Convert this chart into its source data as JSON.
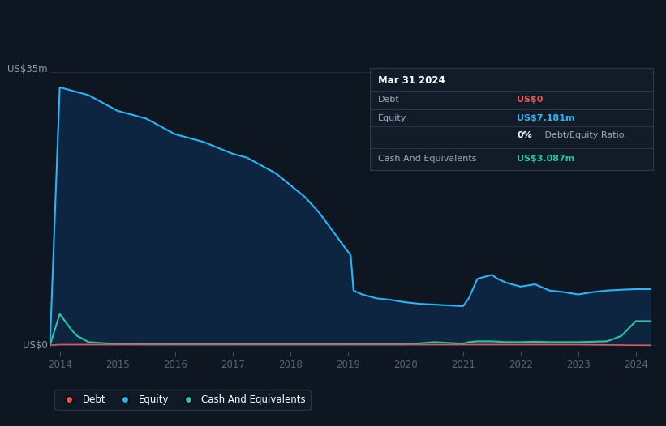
{
  "background_color": "#0e1621",
  "plot_bg_color": "#0e1621",
  "grid_color": "#1e2d3d",
  "x_ticks": [
    2014,
    2015,
    2016,
    2017,
    2018,
    2019,
    2020,
    2021,
    2022,
    2023,
    2024
  ],
  "equity_color": "#29b6f6",
  "equity_fill": "#0d2540",
  "debt_color": "#ef5350",
  "cash_color": "#26c6a6",
  "ylim_max": 35,
  "equity_data": {
    "x": [
      2013.83,
      2014.0,
      2014.25,
      2014.5,
      2015.0,
      2015.5,
      2016.0,
      2016.5,
      2017.0,
      2017.25,
      2017.5,
      2017.75,
      2018.0,
      2018.25,
      2018.5,
      2018.75,
      2019.0,
      2019.05,
      2019.1,
      2019.25,
      2019.5,
      2019.75,
      2020.0,
      2020.25,
      2020.5,
      2021.0,
      2021.1,
      2021.25,
      2021.5,
      2021.6,
      2021.75,
      2022.0,
      2022.25,
      2022.5,
      2022.75,
      2023.0,
      2023.25,
      2023.5,
      2023.75,
      2024.0,
      2024.25
    ],
    "y": [
      0,
      33,
      32.5,
      32,
      30,
      29,
      27,
      26,
      24.5,
      24,
      23,
      22,
      20.5,
      19,
      17,
      14.5,
      12,
      11.5,
      7,
      6.5,
      6,
      5.8,
      5.5,
      5.3,
      5.2,
      5.0,
      6.0,
      8.5,
      9.0,
      8.5,
      8.0,
      7.5,
      7.8,
      7.0,
      6.8,
      6.5,
      6.8,
      7.0,
      7.1,
      7.181,
      7.181
    ]
  },
  "debt_data": {
    "x": [
      2013.83,
      2014.0,
      2015.0,
      2016.0,
      2017.0,
      2018.0,
      2019.0,
      2020.0,
      2020.5,
      2021.0,
      2022.0,
      2023.0,
      2024.0,
      2024.25
    ],
    "y": [
      0,
      0.08,
      0.08,
      0.08,
      0.08,
      0.08,
      0.08,
      0.08,
      0.08,
      0.08,
      0.08,
      0.08,
      0,
      0
    ]
  },
  "cash_data": {
    "x": [
      2013.83,
      2014.0,
      2014.05,
      2014.1,
      2014.2,
      2014.3,
      2014.5,
      2015.0,
      2015.5,
      2016.0,
      2016.5,
      2017.0,
      2017.5,
      2018.0,
      2018.5,
      2019.0,
      2019.5,
      2020.0,
      2020.25,
      2020.5,
      2020.75,
      2021.0,
      2021.1,
      2021.25,
      2021.5,
      2021.75,
      2022.0,
      2022.25,
      2022.5,
      2022.75,
      2023.0,
      2023.25,
      2023.5,
      2023.75,
      2024.0,
      2024.25
    ],
    "y": [
      0,
      4.0,
      3.5,
      3.0,
      2.0,
      1.2,
      0.4,
      0.15,
      0.12,
      0.12,
      0.12,
      0.12,
      0.12,
      0.12,
      0.12,
      0.12,
      0.12,
      0.12,
      0.25,
      0.4,
      0.3,
      0.2,
      0.4,
      0.5,
      0.5,
      0.4,
      0.4,
      0.45,
      0.4,
      0.4,
      0.4,
      0.45,
      0.5,
      1.2,
      3.087,
      3.087
    ]
  },
  "info_box": {
    "title": "Mar 31 2024",
    "rows": [
      {
        "label": "Debt",
        "value": "US$0",
        "value_color": "#ef5350"
      },
      {
        "label": "Equity",
        "value": "US$7.181m",
        "value_color": "#29b6f6"
      },
      {
        "label": "",
        "value_bold": "0%",
        "value_rest": " Debt/Equity Ratio"
      },
      {
        "label": "Cash And Equivalents",
        "value": "US$3.087m",
        "value_color": "#26c6a6"
      }
    ]
  },
  "legend": [
    {
      "label": "Debt",
      "color": "#ef5350"
    },
    {
      "label": "Equity",
      "color": "#29b6f6"
    },
    {
      "label": "Cash And Equivalents",
      "color": "#26c6a6"
    }
  ]
}
